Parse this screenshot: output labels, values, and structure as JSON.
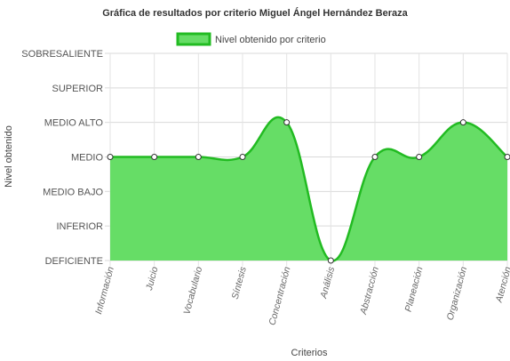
{
  "chart_data": {
    "type": "area",
    "title": "Gráfica de resultados por criterio Miguel Ángel Hernández Beraza",
    "xlabel": "Criterios",
    "ylabel": "Nivel obtenido",
    "y_levels": [
      "DEFICIENTE",
      "INFERIOR",
      "MEDIO BAJO",
      "MEDIO",
      "MEDIO ALTO",
      "SUPERIOR",
      "SOBRESALIENTE"
    ],
    "categories": [
      "Información",
      "Juicio",
      "Vocabulario",
      "Síntesis",
      "Concentración",
      "Análisis",
      "Abstracción",
      "Planeación",
      "Organización",
      "Atención"
    ],
    "series": [
      {
        "name": "Nivel obtenido por criterio",
        "values": [
          3,
          3,
          3,
          3,
          4,
          0,
          3,
          3,
          4,
          3
        ],
        "labels": [
          "MEDIO",
          "MEDIO",
          "MEDIO",
          "MEDIO",
          "MEDIO ALTO",
          "DEFICIENTE",
          "MEDIO",
          "MEDIO",
          "MEDIO ALTO",
          "MEDIO"
        ]
      }
    ],
    "ylim": [
      0,
      6
    ],
    "grid": true,
    "legend_position": "top",
    "fill_color": "#66dd66",
    "line_color": "#22bb22"
  }
}
